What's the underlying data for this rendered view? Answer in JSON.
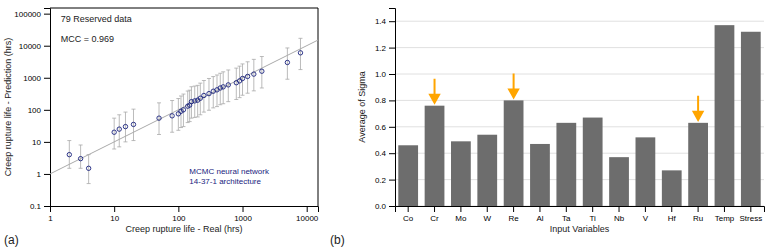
{
  "chart_data": [
    {
      "type": "scatter",
      "title": "79 Reserved data",
      "annotations": [
        "MCC = 0.969",
        "MCMC neural network\n14-37-1 architecture",
        "(a)"
      ],
      "x_label": "Creep rupture life - Real (hrs)",
      "y_label": "Creep rupture life - Prediction (hrs)",
      "x": [
        2,
        3,
        4,
        10,
        12,
        15,
        20,
        50,
        80,
        100,
        110,
        120,
        140,
        150,
        160,
        180,
        200,
        220,
        250,
        300,
        350,
        400,
        450,
        500,
        600,
        800,
        900,
        1000,
        1200,
        1500,
        2000,
        5000,
        8000
      ],
      "y": [
        4,
        3,
        1.5,
        20,
        25,
        30,
        35,
        55,
        65,
        75,
        90,
        100,
        130,
        140,
        180,
        190,
        200,
        230,
        280,
        320,
        380,
        420,
        480,
        520,
        600,
        700,
        800,
        950,
        1100,
        1300,
        1600,
        3000,
        6000
      ],
      "y_error_low": [
        2.5,
        1.5,
        1.0,
        14,
        18,
        20,
        24,
        38,
        45,
        52,
        62,
        70,
        90,
        97,
        125,
        132,
        140,
        160,
        195,
        223,
        265,
        294,
        336,
        365,
        420,
        490,
        560,
        665,
        770,
        910,
        1120,
        2100,
        4200
      ],
      "y_error_high": [
        7,
        5,
        2.5,
        35,
        45,
        55,
        70,
        110,
        130,
        150,
        180,
        210,
        255,
        270,
        345,
        360,
        380,
        450,
        540,
        630,
        710,
        800,
        900,
        1010,
        1150,
        1300,
        1500,
        1750,
        2050,
        2450,
        3000,
        5500,
        11000
      ],
      "color": "#1a237e",
      "marker": "open-circle",
      "error_color": "#aaaaaa",
      "reference_line": {
        "x": [
          1,
          15000
        ],
        "y": [
          1,
          15000
        ],
        "color": "#aaaaaa"
      },
      "log": true,
      "grid": false,
      "xlim": [
        1,
        15000
      ],
      "ylim": [
        0.1,
        150000
      ],
      "xticks": [
        1,
        10,
        100,
        1000,
        10000
      ],
      "yticks": [
        0.1,
        1,
        10,
        100,
        1000,
        10000,
        100000
      ]
    },
    {
      "type": "bar",
      "annotations": [
        "(b)"
      ],
      "x_label": "Input Variables",
      "y_label": "Average of Sigma",
      "categories": [
        "Co",
        "Cr",
        "Mo",
        "W",
        "Re",
        "Al",
        "Ta",
        "Ti",
        "Nb",
        "V",
        "Hf",
        "Ru",
        "Temp",
        "Stress"
      ],
      "values": [
        0.46,
        0.76,
        0.49,
        0.54,
        0.8,
        0.47,
        0.63,
        0.67,
        0.37,
        0.52,
        0.27,
        0.63,
        1.37,
        1.32
      ],
      "color": "#6d6d6d",
      "grid": true,
      "ylim": [
        0,
        1.5
      ],
      "yticks": [
        {
          "value": 0,
          "label": "0.0"
        },
        0.2,
        0.4,
        0.6,
        0.8,
        {
          "value": 1,
          "label": "1.0"
        },
        1.2,
        1.4
      ],
      "arrows": {
        "indices": [
          1,
          4,
          11
        ],
        "color": "#FFA500"
      }
    }
  ]
}
